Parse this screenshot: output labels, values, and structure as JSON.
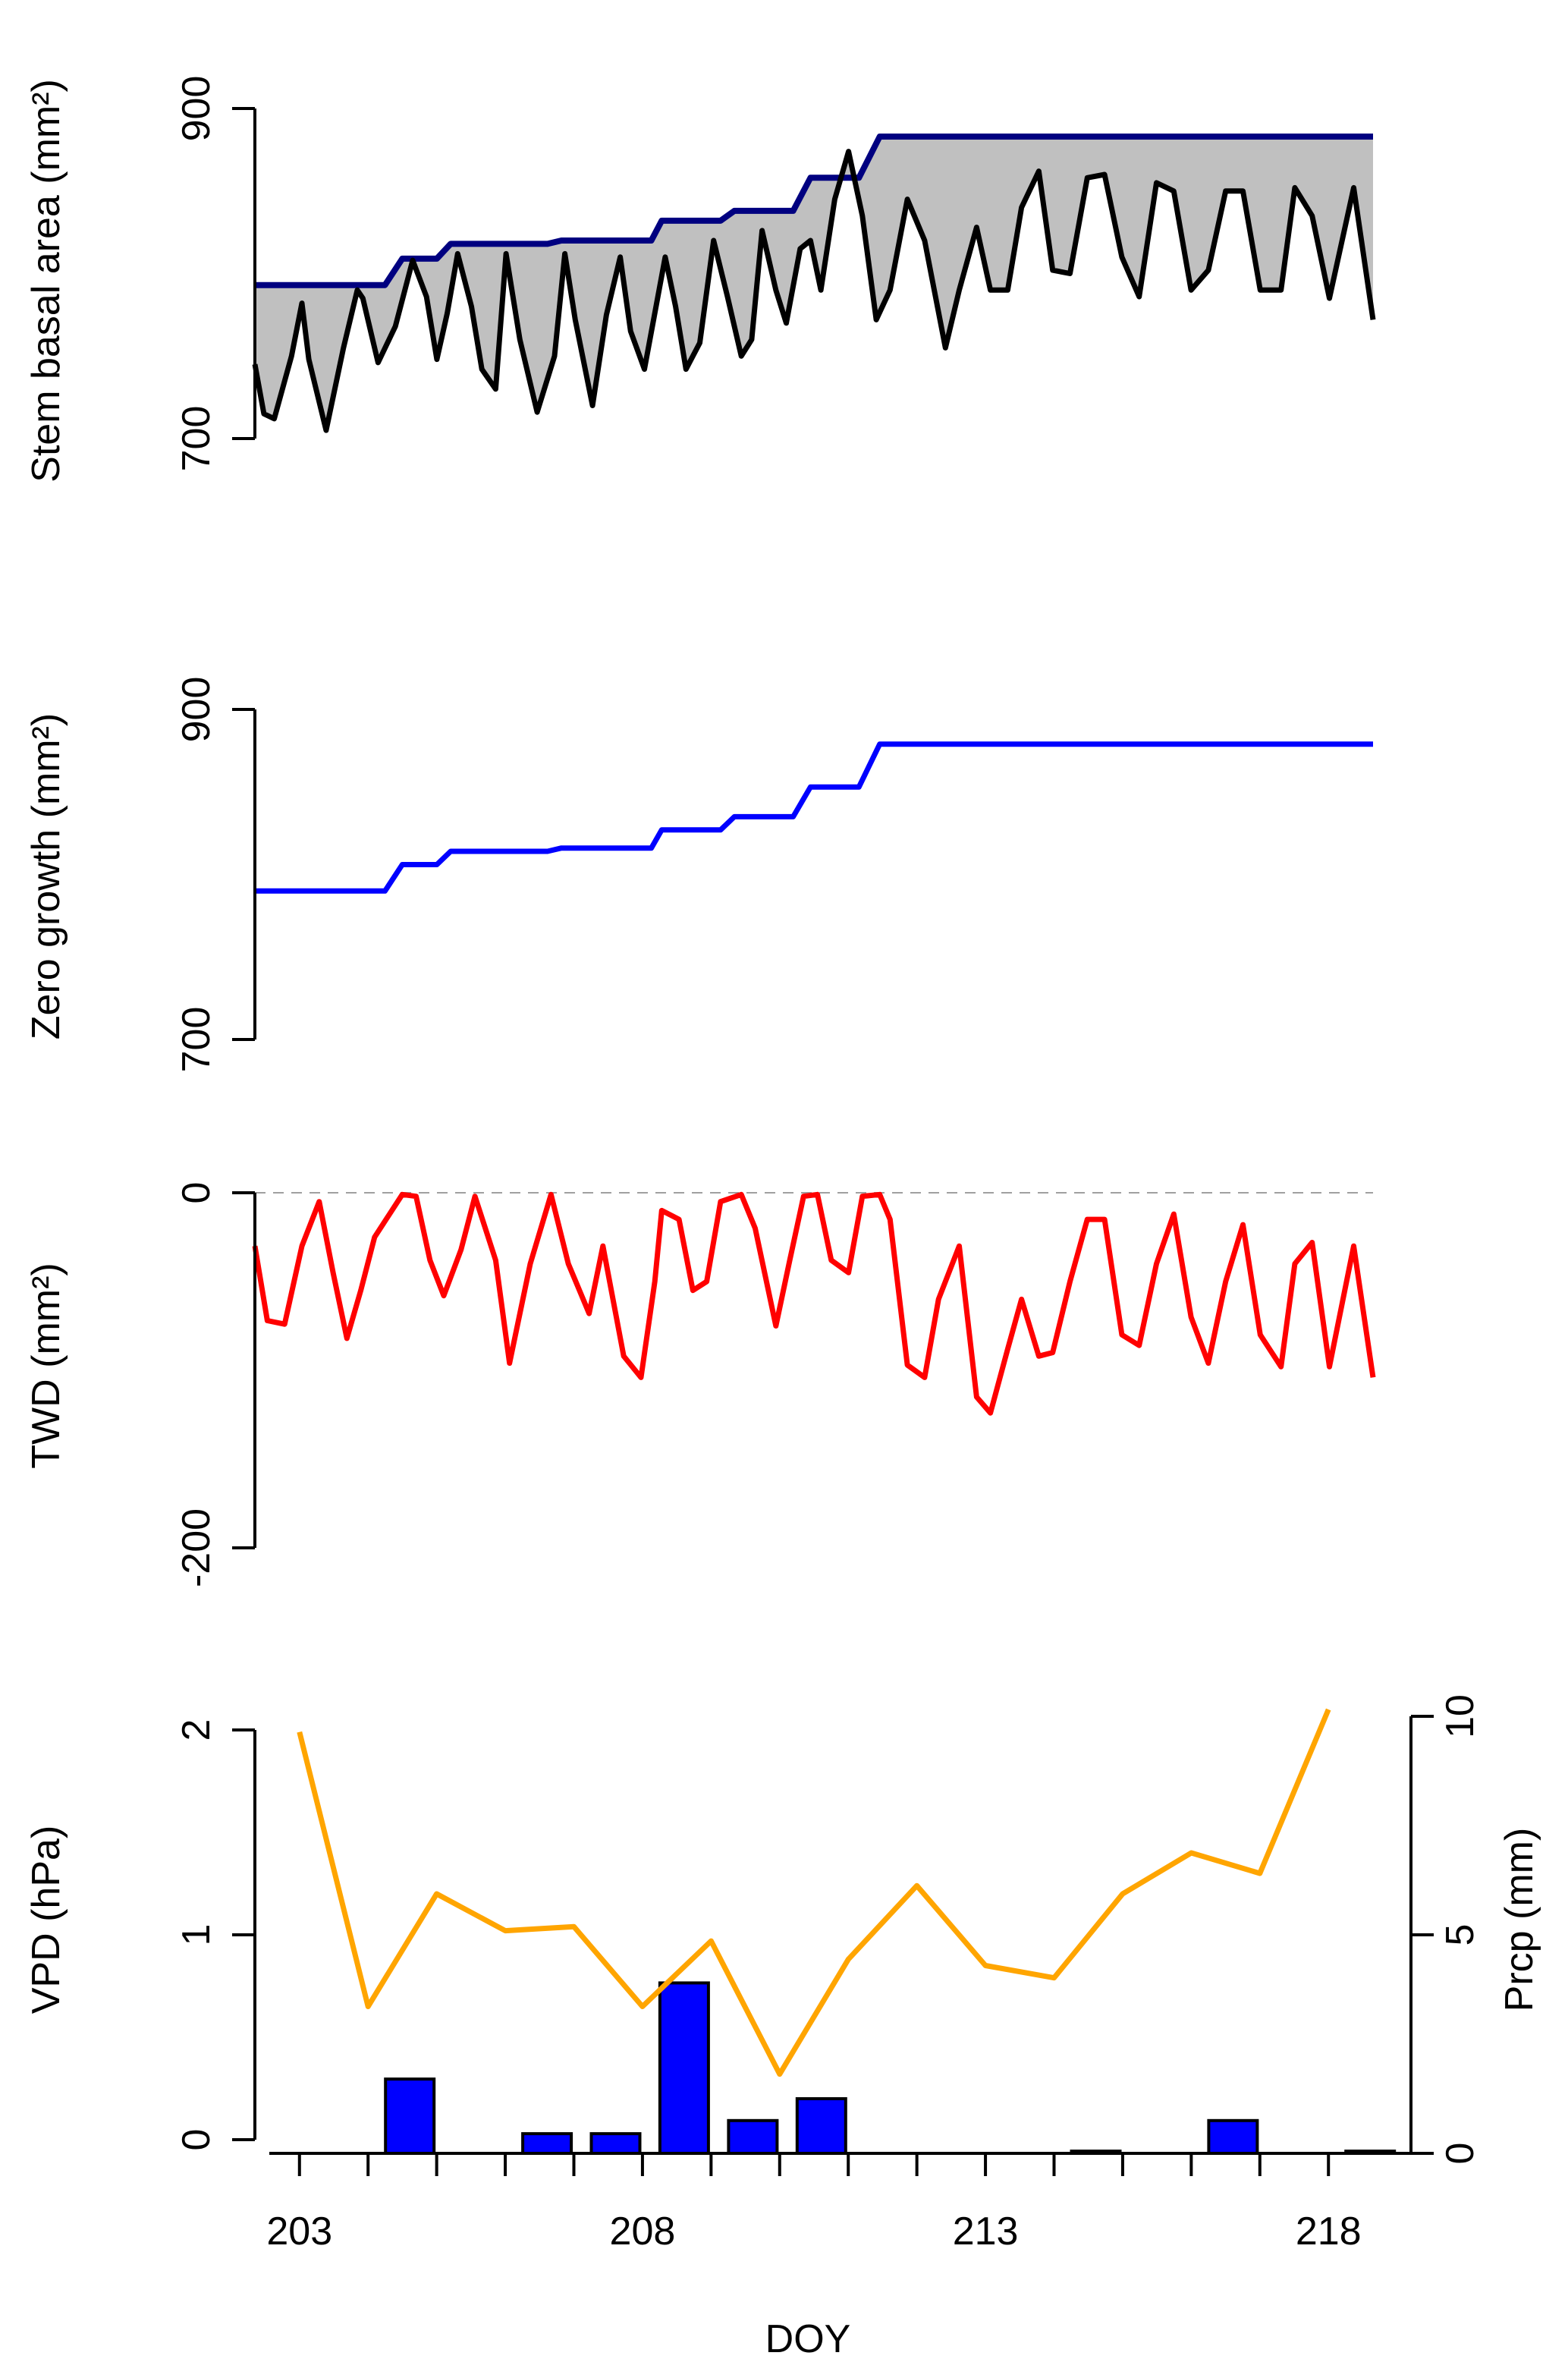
{
  "colors": {
    "axis": "#000000",
    "basal_area_line": "#000000",
    "envelope_line": "#000080",
    "envelope_fill": "#c0c0c0",
    "zero_growth_line": "#0000ff",
    "twd_line": "#ff0000",
    "zero_reference": "#a0a0a0",
    "vpd_line": "#ffa500",
    "prcp_bar": "#0000ff"
  },
  "chart_data": [
    {
      "id": "stem-basal-area",
      "type": "line",
      "title": "",
      "xlabel": "",
      "ylabel": "Stem basal area (mm²)",
      "xlim": [
        202.42,
        218.58
      ],
      "ylim": [
        700,
        900
      ],
      "yticks": [
        700,
        900
      ],
      "ytick_labels": [
        "700",
        "900"
      ],
      "series": [
        {
          "name": "Stem basal area",
          "x": [
            202.42,
            202.55,
            202.7,
            202.95,
            203.1,
            203.2,
            203.45,
            203.7,
            203.9,
            203.98,
            204.2,
            204.45,
            204.7,
            204.9,
            205.05,
            205.2,
            205.35,
            205.55,
            205.7,
            205.9,
            206.05,
            206.25,
            206.5,
            206.75,
            206.9,
            207.05,
            207.3,
            207.5,
            207.7,
            207.85,
            208.05,
            208.2,
            208.35,
            208.5,
            208.65,
            208.85,
            209.05,
            209.25,
            209.45,
            209.6,
            209.75,
            209.95,
            210.1,
            210.3,
            210.45,
            210.6,
            210.8,
            211.0,
            211.2,
            211.4,
            211.6,
            211.85,
            212.1,
            212.4,
            212.6,
            212.85,
            213.05,
            213.3,
            213.5,
            213.75,
            213.95,
            214.2,
            214.45,
            214.7,
            214.95,
            215.2,
            215.45,
            215.7,
            215.95,
            216.2,
            216.45,
            216.7,
            216.95,
            217.25,
            217.45,
            217.7,
            217.95,
            218.3,
            218.58
          ],
          "y": [
            745,
            715,
            712,
            750,
            782,
            748,
            705,
            755,
            790,
            785,
            746,
            768,
            808,
            786,
            748,
            776,
            812,
            780,
            742,
            730,
            812,
            760,
            716,
            750,
            812,
            772,
            720,
            775,
            810,
            765,
            742,
            776,
            810,
            780,
            742,
            758,
            820,
            786,
            750,
            760,
            826,
            790,
            770,
            815,
            820,
            790,
            845,
            874,
            835,
            772,
            790,
            845,
            820,
            755,
            790,
            828,
            790,
            790,
            840,
            862,
            802,
            800,
            858,
            860,
            810,
            786,
            855,
            850,
            790,
            802,
            850,
            850,
            790,
            790,
            852,
            835,
            785,
            852,
            772
          ]
        },
        {
          "name": "Zero-growth envelope",
          "x": [
            202.42,
            204.3,
            204.55,
            205.05,
            205.25,
            206.65,
            206.85,
            208.15,
            208.3,
            209.15,
            209.35,
            210.2,
            210.45,
            211.15,
            211.45,
            218.58
          ],
          "y": [
            793,
            793,
            809,
            809,
            818,
            818,
            820,
            820,
            832,
            832,
            838,
            838,
            858,
            858,
            883,
            883
          ]
        }
      ]
    },
    {
      "id": "zero-growth",
      "type": "line",
      "title": "",
      "xlabel": "",
      "ylabel": "Zero growth (mm²)",
      "xlim": [
        202.42,
        218.58
      ],
      "ylim": [
        700,
        900
      ],
      "yticks": [
        700,
        900
      ],
      "ytick_labels": [
        "700",
        "900"
      ],
      "series": [
        {
          "name": "Zero growth",
          "x": [
            202.42,
            204.3,
            204.55,
            205.05,
            205.25,
            206.65,
            206.85,
            208.15,
            208.3,
            209.15,
            209.35,
            210.2,
            210.45,
            211.15,
            211.45,
            218.58
          ],
          "y": [
            790,
            790,
            806,
            806,
            814,
            814,
            816,
            816,
            827,
            827,
            835,
            835,
            853,
            853,
            879,
            879
          ]
        }
      ]
    },
    {
      "id": "twd",
      "type": "line",
      "title": "",
      "xlabel": "",
      "ylabel": "TWD (mm²)",
      "xlim": [
        202.42,
        218.58
      ],
      "ylim": [
        -200,
        0
      ],
      "yticks": [
        -200,
        0
      ],
      "ytick_labels": [
        "-200",
        "0"
      ],
      "reference_line": 0,
      "series": [
        {
          "name": "TWD",
          "x": [
            202.42,
            202.6,
            202.85,
            203.1,
            203.35,
            203.55,
            203.75,
            203.95,
            204.15,
            204.55,
            204.75,
            204.95,
            205.15,
            205.4,
            205.6,
            205.9,
            206.1,
            206.4,
            206.7,
            206.95,
            207.25,
            207.45,
            207.75,
            208.0,
            208.2,
            208.3,
            208.55,
            208.75,
            208.95,
            209.15,
            209.45,
            209.65,
            209.95,
            210.15,
            210.35,
            210.55,
            210.75,
            211.0,
            211.2,
            211.45,
            211.6,
            211.85,
            212.1,
            212.3,
            212.6,
            212.85,
            213.05,
            213.3,
            213.5,
            213.75,
            213.95,
            214.2,
            214.45,
            214.7,
            214.95,
            215.2,
            215.45,
            215.7,
            215.95,
            216.2,
            216.45,
            216.7,
            216.95,
            217.25,
            217.45,
            217.7,
            217.95,
            218.3,
            218.58
          ],
          "y": [
            -30,
            -72,
            -74,
            -30,
            -5,
            -45,
            -82,
            -55,
            -25,
            -1,
            -2,
            -38,
            -58,
            -32,
            -2,
            -38,
            -96,
            -40,
            -1,
            -40,
            -68,
            -30,
            -92,
            -104,
            -50,
            -10,
            -15,
            -55,
            -50,
            -5,
            -1,
            -20,
            -75,
            -38,
            -2,
            -1,
            -38,
            -45,
            -2,
            -1,
            -15,
            -97,
            -104,
            -60,
            -30,
            -115,
            -124,
            -88,
            -60,
            -92,
            -90,
            -50,
            -15,
            -15,
            -80,
            -86,
            -40,
            -12,
            -70,
            -96,
            -50,
            -18,
            -80,
            -98,
            -40,
            -28,
            -98,
            -30,
            -104
          ]
        }
      ]
    },
    {
      "id": "vpd-prcp",
      "type": "bar+line",
      "title": "",
      "xlabel": "DOY",
      "ylabel": "VPD (hPa)",
      "ylabel_right": "Prcp (mm)",
      "xlim": [
        202.35,
        218.65
      ],
      "xticks": [
        203,
        204,
        205,
        206,
        207,
        208,
        209,
        210,
        211,
        212,
        213,
        214,
        215,
        216,
        217,
        218
      ],
      "xtick_labels": [
        "203",
        "208",
        "213",
        "218"
      ],
      "ylim": [
        0,
        2
      ],
      "yticks": [
        0,
        1,
        2
      ],
      "ytick_labels": [
        "0",
        "1",
        "2"
      ],
      "ylim_right": [
        0,
        10
      ],
      "yticks_right": [
        0,
        5,
        10
      ],
      "ytick_labels_right": [
        "0",
        "5",
        "10"
      ],
      "series": [
        {
          "name": "VPD",
          "axis": "left",
          "type": "line",
          "x": [
            203,
            204,
            205,
            206,
            207,
            208,
            209,
            210,
            211,
            212,
            213,
            214,
            215,
            216,
            217,
            218
          ],
          "values": [
            1.99,
            0.65,
            1.2,
            1.02,
            1.04,
            0.65,
            0.97,
            0.32,
            0.88,
            1.24,
            0.85,
            0.79,
            1.2,
            1.4,
            1.3,
            2.1
          ]
        },
        {
          "name": "Prcp",
          "axis": "right",
          "type": "bar",
          "x": [
            203,
            204,
            205,
            206,
            207,
            208,
            209,
            210,
            211,
            212,
            213,
            214,
            215,
            216,
            217,
            218
          ],
          "values": [
            0,
            1.7,
            0,
            0.45,
            0.45,
            3.9,
            0.75,
            1.25,
            0,
            0,
            0,
            0.05,
            0,
            0.75,
            0,
            0.05
          ]
        }
      ]
    }
  ]
}
